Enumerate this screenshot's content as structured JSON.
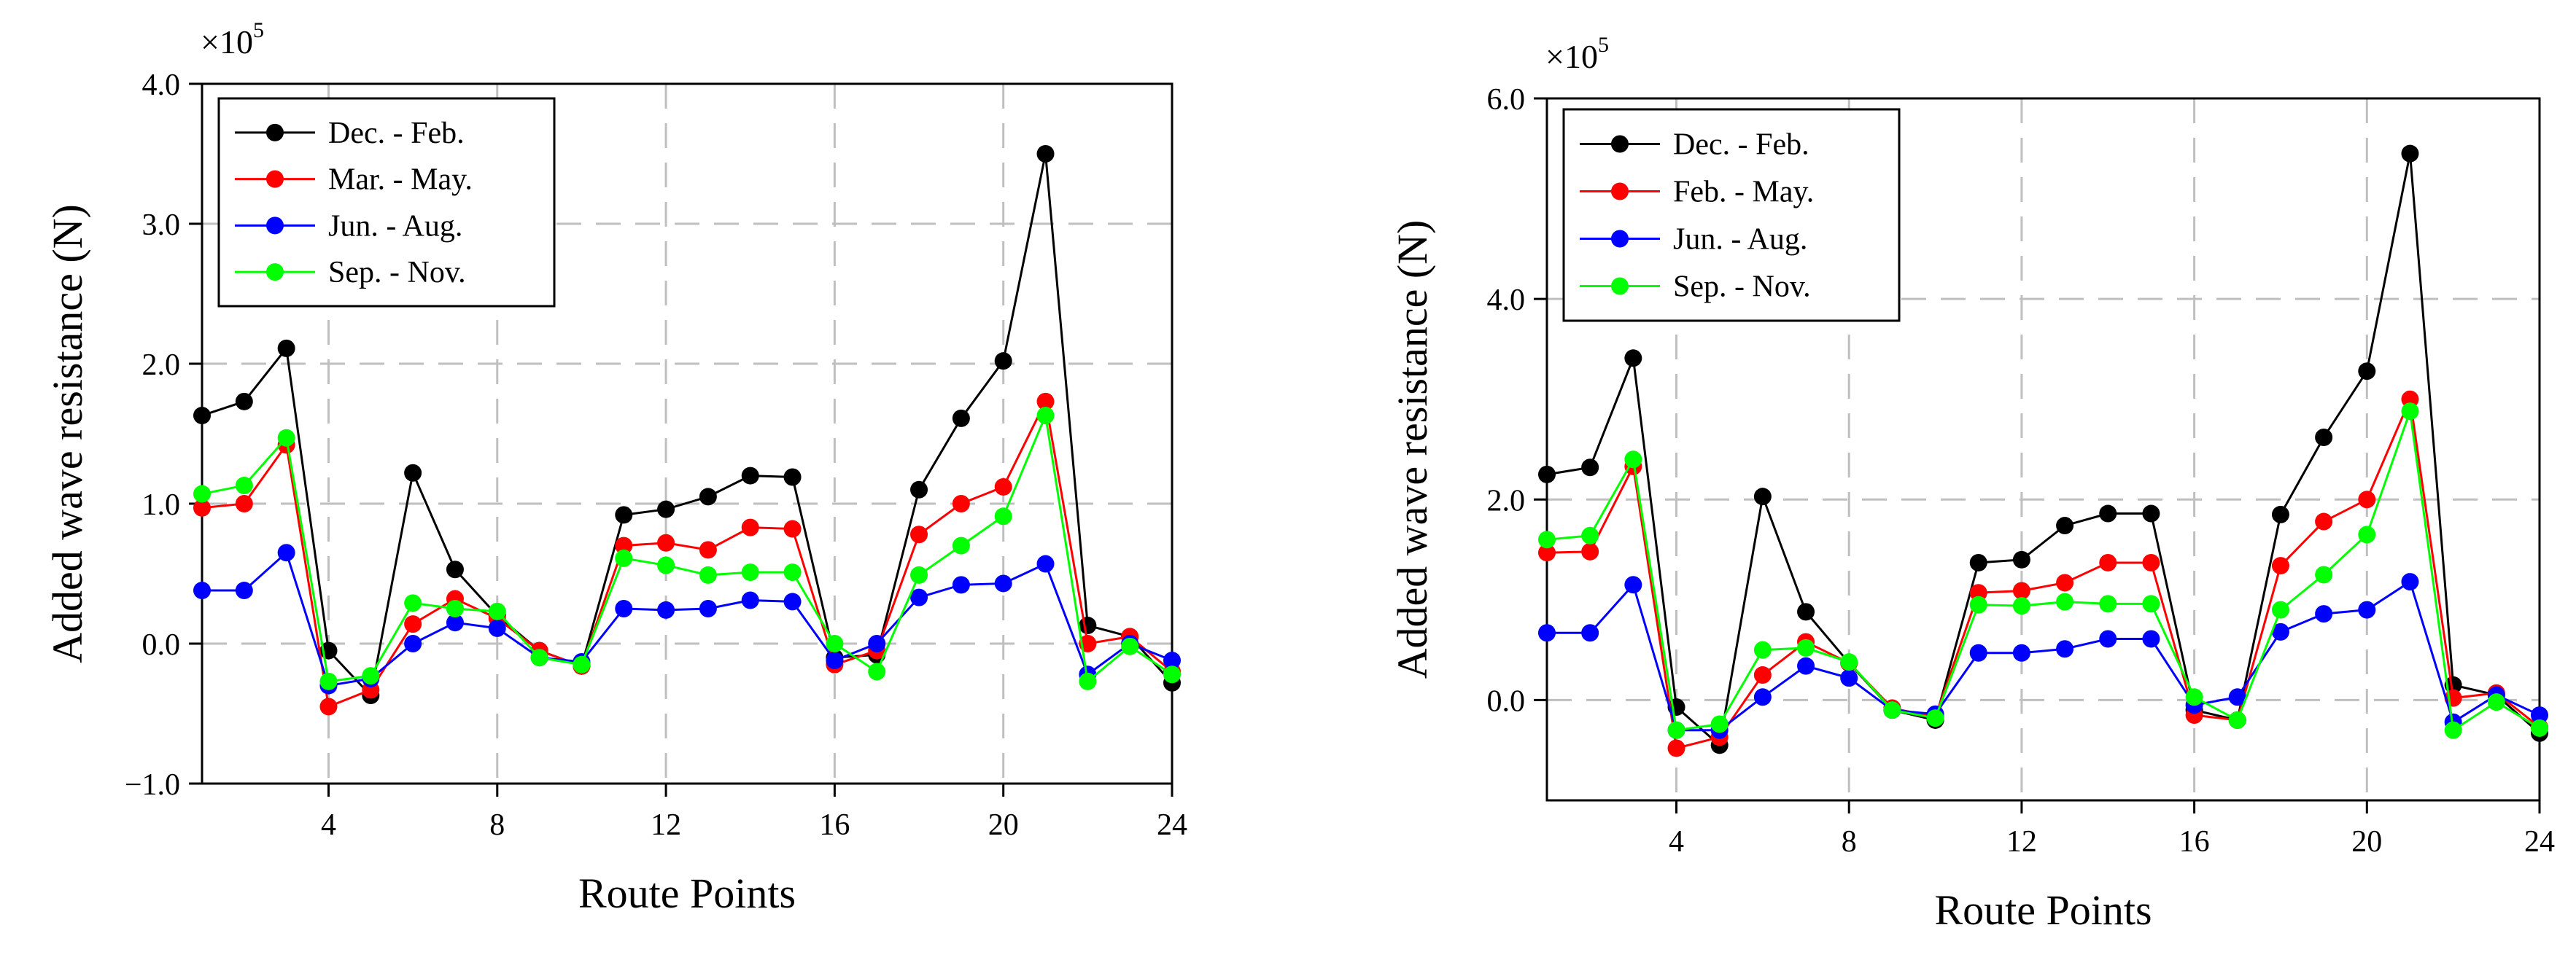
{
  "chart_data": [
    {
      "type": "line",
      "xlabel": "Route Points",
      "ylabel": "Added wave resistance (N)",
      "multiplier": "×10",
      "multiplier_exponent": "5",
      "xlim": [
        1,
        24
      ],
      "ylim": [
        -1.0,
        4.0
      ],
      "xticks": [
        4,
        8,
        12,
        16,
        20,
        24
      ],
      "xtick_labels": [
        "4",
        "8",
        "12",
        "16",
        "20",
        "24"
      ],
      "yticks": [
        -1.0,
        0.0,
        1.0,
        2.0,
        3.0,
        4.0
      ],
      "ytick_labels": [
        "−1.0",
        "0.0",
        "1.0",
        "2.0",
        "3.0",
        "4.0"
      ],
      "grid": true,
      "legend_position": "top-left",
      "x": [
        1,
        2,
        3,
        4,
        5,
        6,
        7,
        8,
        9,
        10,
        11,
        12,
        13,
        14,
        15,
        16,
        17,
        18,
        19,
        20,
        21,
        22,
        23,
        24
      ],
      "series": [
        {
          "name": "Dec. - Feb.",
          "color": "#000000",
          "values": [
            1.63,
            1.73,
            2.11,
            -0.05,
            -0.37,
            1.22,
            0.53,
            0.2,
            -0.05,
            -0.16,
            0.92,
            0.96,
            1.05,
            1.2,
            1.19,
            -0.1,
            -0.08,
            1.1,
            1.61,
            2.02,
            3.5,
            0.13,
            0.05,
            -0.28
          ]
        },
        {
          "name": "Mar. - May.",
          "color": "#ff0000",
          "values": [
            0.97,
            1.0,
            1.42,
            -0.45,
            -0.33,
            0.14,
            0.32,
            0.18,
            -0.05,
            -0.16,
            0.7,
            0.72,
            0.67,
            0.83,
            0.82,
            -0.15,
            -0.05,
            0.78,
            1.0,
            1.12,
            1.73,
            0.0,
            0.05,
            -0.2
          ]
        },
        {
          "name": "Jun. - Aug.",
          "color": "#0000ff",
          "values": [
            0.38,
            0.38,
            0.65,
            -0.3,
            -0.25,
            0.0,
            0.15,
            0.11,
            -0.1,
            -0.13,
            0.25,
            0.24,
            0.25,
            0.31,
            0.3,
            -0.12,
            0.0,
            0.33,
            0.42,
            0.43,
            0.57,
            -0.22,
            0.0,
            -0.12
          ]
        },
        {
          "name": "Sep. - Nov.",
          "color": "#00ff00",
          "values": [
            1.07,
            1.13,
            1.47,
            -0.27,
            -0.23,
            0.29,
            0.25,
            0.23,
            -0.1,
            -0.15,
            0.61,
            0.56,
            0.49,
            0.51,
            0.51,
            0.0,
            -0.2,
            0.49,
            0.7,
            0.91,
            1.63,
            -0.27,
            -0.02,
            -0.22
          ]
        }
      ]
    },
    {
      "type": "line",
      "xlabel": "Route Points",
      "ylabel": "Added wave resistance (N)",
      "multiplier": "×10",
      "multiplier_exponent": "5",
      "xlim": [
        1,
        24
      ],
      "ylim": [
        -1.0,
        6.0
      ],
      "xticks": [
        4,
        8,
        12,
        16,
        20,
        24
      ],
      "xtick_labels": [
        "4",
        "8",
        "12",
        "16",
        "20",
        "24"
      ],
      "yticks": [
        0.0,
        2.0,
        4.0,
        6.0
      ],
      "ytick_labels": [
        "0.0",
        "2.0",
        "4.0",
        "6.0"
      ],
      "grid": true,
      "legend_position": "top-left",
      "x": [
        1,
        2,
        3,
        4,
        5,
        6,
        7,
        8,
        9,
        10,
        11,
        12,
        13,
        14,
        15,
        16,
        17,
        18,
        19,
        20,
        21,
        22,
        23,
        24
      ],
      "series": [
        {
          "name": "Dec. - Feb.",
          "color": "#000000",
          "values": [
            2.25,
            2.32,
            3.41,
            -0.07,
            -0.45,
            2.03,
            0.88,
            0.37,
            -0.1,
            -0.2,
            1.37,
            1.4,
            1.74,
            1.86,
            1.86,
            -0.1,
            -0.2,
            1.85,
            2.62,
            3.28,
            5.45,
            0.15,
            0.05,
            -0.33
          ]
        },
        {
          "name": "Feb. - May.",
          "color": "#ff0000",
          "values": [
            1.47,
            1.48,
            2.33,
            -0.48,
            -0.37,
            0.25,
            0.58,
            0.37,
            -0.08,
            -0.17,
            1.07,
            1.09,
            1.17,
            1.37,
            1.37,
            -0.15,
            -0.2,
            1.34,
            1.78,
            2.0,
            3.0,
            0.02,
            0.07,
            -0.27
          ]
        },
        {
          "name": "Jun. - Aug.",
          "color": "#0000ff",
          "values": [
            0.67,
            0.67,
            1.15,
            -0.3,
            -0.3,
            0.03,
            0.34,
            0.22,
            -0.1,
            -0.14,
            0.47,
            0.47,
            0.51,
            0.61,
            0.61,
            -0.05,
            0.03,
            0.68,
            0.86,
            0.9,
            1.18,
            -0.22,
            0.05,
            -0.15
          ]
        },
        {
          "name": "Sep. - Nov.",
          "color": "#00ff00",
          "values": [
            1.6,
            1.64,
            2.4,
            -0.3,
            -0.24,
            0.5,
            0.52,
            0.38,
            -0.1,
            -0.18,
            0.95,
            0.94,
            0.98,
            0.96,
            0.96,
            0.03,
            -0.2,
            0.9,
            1.25,
            1.65,
            2.88,
            -0.3,
            -0.02,
            -0.28
          ]
        }
      ]
    }
  ]
}
